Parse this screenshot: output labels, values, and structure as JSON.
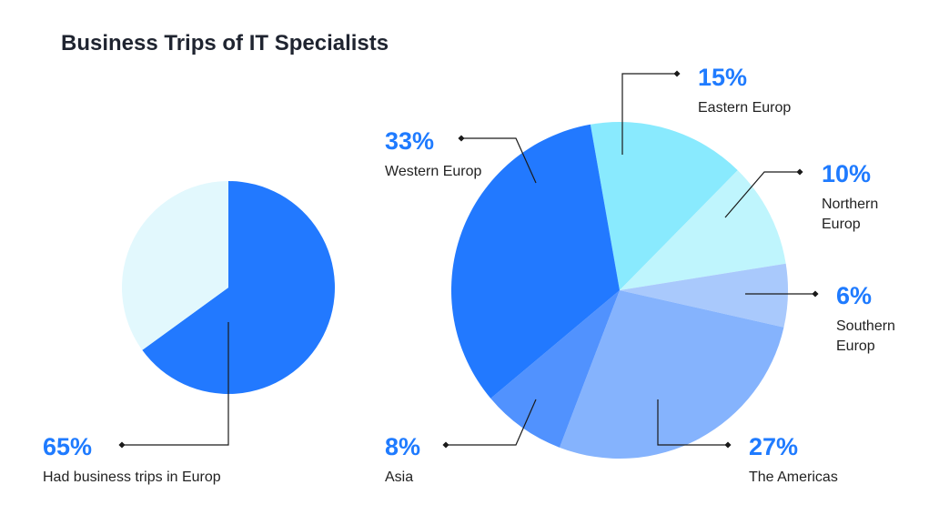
{
  "chart_data": [
    {
      "type": "pie",
      "title": "Business Trips of IT Specialists",
      "slices": [
        {
          "label": "Had business trips in Europ",
          "value": 65,
          "display": "65%",
          "color": "#2279ff"
        },
        {
          "label": "",
          "value": 35,
          "display": "",
          "color": "#e2f8fd"
        }
      ]
    },
    {
      "type": "pie",
      "slices": [
        {
          "label": "Eastern Europ",
          "value": 15,
          "display": "15%",
          "color": "#89eafe"
        },
        {
          "label": "Northern Europ",
          "value": 10,
          "display": "10%",
          "color": "#bff5fd"
        },
        {
          "label": "Southern Europ",
          "value": 6,
          "display": "6%",
          "color": "#a9c9fc"
        },
        {
          "label": "The Americas",
          "value": 27,
          "display": "27%",
          "color": "#85b3fd"
        },
        {
          "label": "Asia",
          "value": 8,
          "display": "8%",
          "color": "#5192fe"
        },
        {
          "label": "Western Europ",
          "value": 33,
          "display": "33%",
          "color": "#2279ff"
        }
      ]
    }
  ]
}
